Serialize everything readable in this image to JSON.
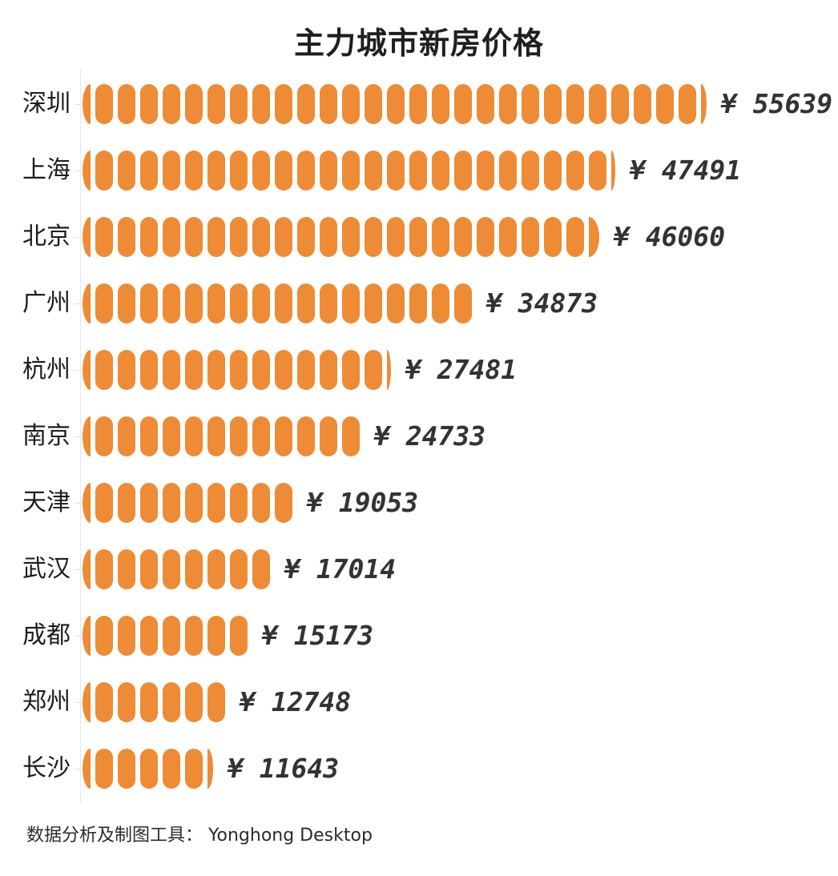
{
  "title": "主力城市新房价格",
  "footer": {
    "text": "数据分析及制图工具： Yonghong Desktop"
  },
  "colors": {
    "bar": "#ED8B36",
    "title_text": "#1f1f1f",
    "category_text": "#1d1d1d",
    "value_text": "#333333",
    "axis_line": "#e7e7e7",
    "background": "#ffffff"
  },
  "chart_data": {
    "type": "bar",
    "orientation": "horizontal",
    "style": "pictogram-pill-segments",
    "title": "主力城市新房价格",
    "categories": [
      "深圳",
      "上海",
      "北京",
      "广州",
      "杭州",
      "南京",
      "天津",
      "武汉",
      "成都",
      "郑州",
      "长沙"
    ],
    "values": [
      55639,
      47491,
      46060,
      34873,
      27481,
      24733,
      19053,
      17014,
      15173,
      12748,
      11643
    ],
    "value_prefix": "¥",
    "value_labels": [
      "¥ 55639",
      "¥ 47491",
      "¥ 46060",
      "¥ 34873",
      "¥ 27481",
      "¥ 24733",
      "¥ 19053",
      "¥ 17014",
      "¥ 15173",
      "¥ 12748",
      "¥ 11643"
    ],
    "unit_per_pill_yuan": 2000,
    "xlim": [
      0,
      55639
    ],
    "grid": false,
    "legend": "none",
    "value_label_position": "end-of-bar",
    "category_axis": "left"
  }
}
